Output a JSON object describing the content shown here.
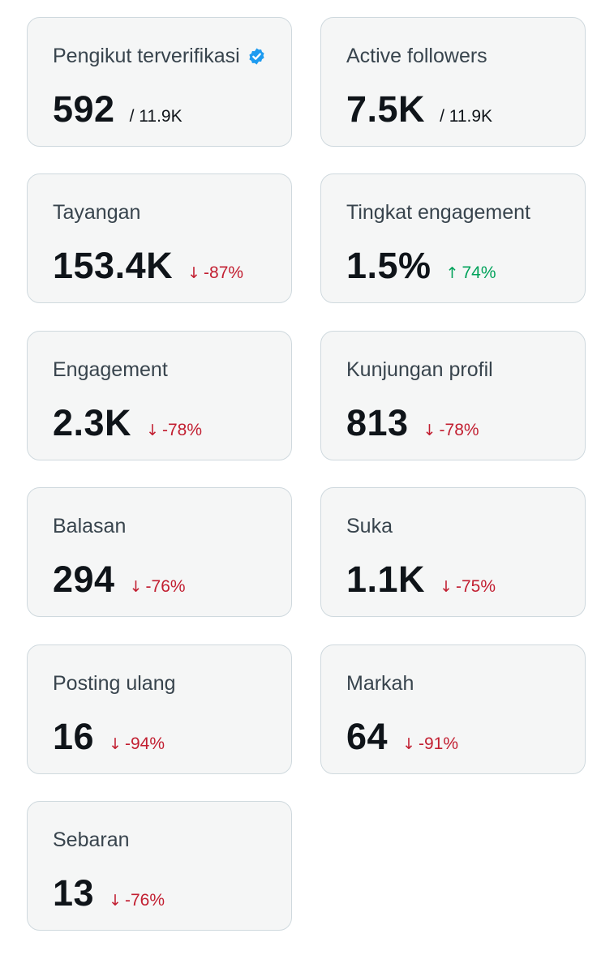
{
  "colors": {
    "card_bg": "#f5f6f6",
    "card_border": "#cfd9de",
    "label": "#38444d",
    "value": "#0f1419",
    "negative": "#c21f31",
    "positive": "#00a25a",
    "verified": "#1d9bf0"
  },
  "cards": [
    {
      "label": "Pengikut terverifikasi",
      "icon": "verified-badge-icon",
      "value": "592",
      "total": "/ 11.9K"
    },
    {
      "label": "Active followers",
      "value": "7.5K",
      "total": "/ 11.9K"
    },
    {
      "label": "Tayangan",
      "value": "153.4K",
      "arrow": "↓",
      "change": "-87%",
      "direction": "down"
    },
    {
      "label": "Tingkat engagement",
      "value": "1.5%",
      "arrow": "↑",
      "change": "74%",
      "direction": "up"
    },
    {
      "label": "Engagement",
      "value": "2.3K",
      "arrow": "↓",
      "change": "-78%",
      "direction": "down"
    },
    {
      "label": "Kunjungan profil",
      "value": "813",
      "arrow": "↓",
      "change": "-78%",
      "direction": "down"
    },
    {
      "label": "Balasan",
      "value": "294",
      "arrow": "↓",
      "change": "-76%",
      "direction": "down"
    },
    {
      "label": "Suka",
      "value": "1.1K",
      "arrow": "↓",
      "change": "-75%",
      "direction": "down"
    },
    {
      "label": "Posting ulang",
      "value": "16",
      "arrow": "↓",
      "change": "-94%",
      "direction": "down"
    },
    {
      "label": "Markah",
      "value": "64",
      "arrow": "↓",
      "change": "-91%",
      "direction": "down"
    },
    {
      "label": "Sebaran",
      "value": "13",
      "arrow": "↓",
      "change": "-76%",
      "direction": "down"
    }
  ]
}
